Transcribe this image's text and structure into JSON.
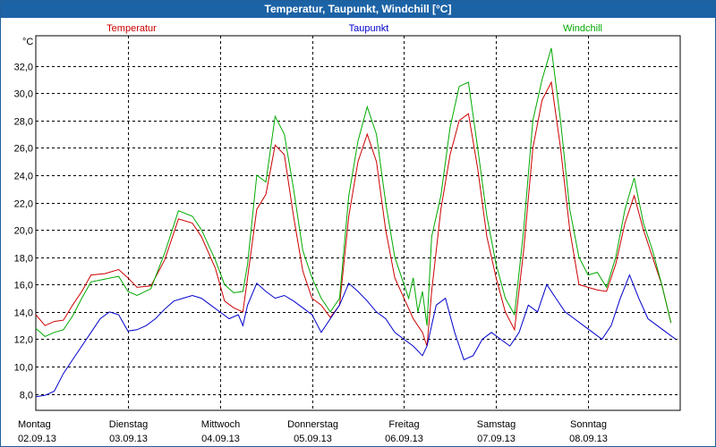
{
  "window": {
    "title": "Temperatur, Taupunkt, Windchill [°C]"
  },
  "chart_data": {
    "type": "line",
    "title": "Temperatur, Taupunkt, Windchill [°C]",
    "ylabel": "°C",
    "xlabel": "",
    "ylim": [
      6.8,
      34.2
    ],
    "xlim": [
      0,
      7
    ],
    "grid": true,
    "yticks": [
      8,
      10,
      12,
      14,
      16,
      18,
      20,
      22,
      24,
      26,
      28,
      30,
      32
    ],
    "ytick_labels": [
      "8,0",
      "10,0",
      "12,0",
      "14,0",
      "16,0",
      "18,0",
      "20,0",
      "22,0",
      "24,0",
      "26,0",
      "28,0",
      "30,0",
      "32,0"
    ],
    "xticks": [
      {
        "x": 0,
        "day": "Montag",
        "date": "02.09.13"
      },
      {
        "x": 1,
        "day": "Dienstag",
        "date": "03.09.13"
      },
      {
        "x": 2,
        "day": "Mittwoch",
        "date": "04.09.13"
      },
      {
        "x": 3,
        "day": "Donnerstag",
        "date": "05.09.13"
      },
      {
        "x": 4,
        "day": "Freitag",
        "date": "06.09.13"
      },
      {
        "x": 5,
        "day": "Samstag",
        "date": "07.09.13"
      },
      {
        "x": 6,
        "day": "Sonntag",
        "date": "08.09.13"
      }
    ],
    "series": [
      {
        "name": "Temperatur",
        "color": "#cc0000",
        "points": [
          [
            0,
            13.8
          ],
          [
            0.1,
            13.0
          ],
          [
            0.2,
            13.3
          ],
          [
            0.3,
            13.4
          ],
          [
            0.4,
            14.5
          ],
          [
            0.5,
            15.5
          ],
          [
            0.6,
            16.7
          ],
          [
            0.75,
            16.8
          ],
          [
            0.9,
            17.1
          ],
          [
            1.0,
            16.5
          ],
          [
            1.1,
            15.8
          ],
          [
            1.25,
            15.9
          ],
          [
            1.4,
            17.8
          ],
          [
            1.55,
            20.8
          ],
          [
            1.7,
            20.5
          ],
          [
            1.8,
            19.5
          ],
          [
            1.95,
            17.2
          ],
          [
            2.05,
            14.8
          ],
          [
            2.15,
            14.3
          ],
          [
            2.25,
            14.0
          ],
          [
            2.3,
            16.5
          ],
          [
            2.4,
            21.5
          ],
          [
            2.5,
            22.6
          ],
          [
            2.6,
            26.2
          ],
          [
            2.7,
            25.5
          ],
          [
            2.8,
            21.0
          ],
          [
            2.9,
            17.0
          ],
          [
            3.0,
            15.0
          ],
          [
            3.1,
            14.5
          ],
          [
            3.2,
            13.6
          ],
          [
            3.3,
            14.5
          ],
          [
            3.4,
            21.0
          ],
          [
            3.5,
            25.0
          ],
          [
            3.6,
            27.0
          ],
          [
            3.7,
            25.0
          ],
          [
            3.8,
            20.0
          ],
          [
            3.9,
            16.5
          ],
          [
            4.0,
            15.0
          ],
          [
            4.1,
            13.5
          ],
          [
            4.2,
            12.5
          ],
          [
            4.25,
            11.5
          ],
          [
            4.3,
            15.5
          ],
          [
            4.4,
            21.5
          ],
          [
            4.5,
            25.5
          ],
          [
            4.6,
            28.0
          ],
          [
            4.7,
            28.5
          ],
          [
            4.8,
            24.5
          ],
          [
            4.9,
            19.5
          ],
          [
            5.0,
            16.5
          ],
          [
            5.1,
            14.0
          ],
          [
            5.2,
            12.7
          ],
          [
            5.3,
            18.5
          ],
          [
            5.4,
            26.0
          ],
          [
            5.5,
            29.5
          ],
          [
            5.6,
            30.8
          ],
          [
            5.7,
            26.0
          ],
          [
            5.8,
            20.0
          ],
          [
            5.9,
            16.0
          ],
          [
            6.0,
            15.8
          ],
          [
            6.1,
            15.6
          ],
          [
            6.2,
            15.5
          ],
          [
            6.3,
            17.5
          ],
          [
            6.4,
            20.5
          ],
          [
            6.5,
            22.5
          ],
          [
            6.6,
            20.0
          ],
          [
            6.7,
            18.0
          ],
          [
            6.8,
            16.0
          ],
          [
            6.9,
            13.2
          ]
        ]
      },
      {
        "name": "Taupunkt",
        "color": "#0000cc",
        "points": [
          [
            0,
            7.8
          ],
          [
            0.1,
            7.9
          ],
          [
            0.2,
            8.2
          ],
          [
            0.3,
            9.5
          ],
          [
            0.4,
            10.5
          ],
          [
            0.5,
            11.5
          ],
          [
            0.6,
            12.5
          ],
          [
            0.7,
            13.5
          ],
          [
            0.8,
            14.0
          ],
          [
            0.9,
            13.8
          ],
          [
            1.0,
            12.6
          ],
          [
            1.1,
            12.7
          ],
          [
            1.2,
            13.0
          ],
          [
            1.3,
            13.5
          ],
          [
            1.4,
            14.2
          ],
          [
            1.5,
            14.8
          ],
          [
            1.6,
            15.0
          ],
          [
            1.7,
            15.2
          ],
          [
            1.8,
            15.0
          ],
          [
            1.9,
            14.5
          ],
          [
            2.0,
            14.0
          ],
          [
            2.1,
            13.5
          ],
          [
            2.2,
            13.8
          ],
          [
            2.25,
            13.0
          ],
          [
            2.3,
            14.5
          ],
          [
            2.4,
            16.1
          ],
          [
            2.5,
            15.5
          ],
          [
            2.6,
            15.0
          ],
          [
            2.7,
            15.2
          ],
          [
            2.8,
            14.8
          ],
          [
            2.9,
            14.3
          ],
          [
            3.0,
            13.8
          ],
          [
            3.1,
            12.5
          ],
          [
            3.2,
            13.5
          ],
          [
            3.3,
            14.5
          ],
          [
            3.4,
            16.1
          ],
          [
            3.5,
            15.5
          ],
          [
            3.6,
            14.8
          ],
          [
            3.7,
            14.0
          ],
          [
            3.8,
            13.5
          ],
          [
            3.9,
            12.5
          ],
          [
            4.0,
            12.0
          ],
          [
            4.1,
            11.5
          ],
          [
            4.2,
            10.8
          ],
          [
            4.25,
            11.5
          ],
          [
            4.35,
            14.5
          ],
          [
            4.45,
            15.0
          ],
          [
            4.55,
            12.5
          ],
          [
            4.65,
            10.5
          ],
          [
            4.75,
            10.8
          ],
          [
            4.85,
            12.0
          ],
          [
            4.95,
            12.5
          ],
          [
            5.05,
            12.0
          ],
          [
            5.15,
            11.5
          ],
          [
            5.25,
            12.5
          ],
          [
            5.35,
            14.5
          ],
          [
            5.45,
            14.0
          ],
          [
            5.55,
            16.0
          ],
          [
            5.65,
            15.0
          ],
          [
            5.75,
            14.0
          ],
          [
            5.85,
            13.5
          ],
          [
            5.95,
            13.0
          ],
          [
            6.05,
            12.5
          ],
          [
            6.15,
            12.0
          ],
          [
            6.25,
            13.0
          ],
          [
            6.35,
            15.0
          ],
          [
            6.45,
            16.7
          ],
          [
            6.55,
            15.0
          ],
          [
            6.65,
            13.5
          ],
          [
            6.75,
            13.0
          ],
          [
            6.85,
            12.5
          ],
          [
            6.95,
            12.0
          ]
        ]
      },
      {
        "name": "Windchill",
        "color": "#00aa00",
        "points": [
          [
            0,
            12.8
          ],
          [
            0.1,
            12.2
          ],
          [
            0.2,
            12.5
          ],
          [
            0.3,
            12.7
          ],
          [
            0.4,
            13.7
          ],
          [
            0.5,
            15.0
          ],
          [
            0.6,
            16.2
          ],
          [
            0.75,
            16.4
          ],
          [
            0.9,
            16.6
          ],
          [
            1.0,
            15.5
          ],
          [
            1.1,
            15.2
          ],
          [
            1.25,
            15.7
          ],
          [
            1.4,
            18.3
          ],
          [
            1.55,
            21.4
          ],
          [
            1.7,
            21.0
          ],
          [
            1.8,
            20.0
          ],
          [
            1.95,
            17.8
          ],
          [
            2.05,
            16.0
          ],
          [
            2.15,
            15.4
          ],
          [
            2.25,
            15.5
          ],
          [
            2.3,
            17.5
          ],
          [
            2.4,
            24.0
          ],
          [
            2.5,
            23.5
          ],
          [
            2.6,
            28.3
          ],
          [
            2.7,
            27.0
          ],
          [
            2.8,
            23.0
          ],
          [
            2.9,
            18.5
          ],
          [
            3.0,
            16.5
          ],
          [
            3.1,
            15.0
          ],
          [
            3.2,
            14.0
          ],
          [
            3.3,
            15.0
          ],
          [
            3.4,
            22.5
          ],
          [
            3.5,
            26.5
          ],
          [
            3.6,
            29.0
          ],
          [
            3.7,
            27.0
          ],
          [
            3.8,
            22.0
          ],
          [
            3.9,
            18.0
          ],
          [
            4.0,
            16.0
          ],
          [
            4.05,
            15.0
          ],
          [
            4.1,
            16.5
          ],
          [
            4.15,
            14.0
          ],
          [
            4.2,
            15.5
          ],
          [
            4.25,
            13.0
          ],
          [
            4.3,
            19.5
          ],
          [
            4.4,
            22.5
          ],
          [
            4.5,
            27.5
          ],
          [
            4.6,
            30.5
          ],
          [
            4.7,
            30.8
          ],
          [
            4.8,
            26.0
          ],
          [
            4.9,
            21.0
          ],
          [
            5.0,
            17.5
          ],
          [
            5.1,
            15.0
          ],
          [
            5.2,
            13.8
          ],
          [
            5.3,
            20.0
          ],
          [
            5.4,
            28.0
          ],
          [
            5.5,
            31.0
          ],
          [
            5.6,
            33.3
          ],
          [
            5.7,
            28.0
          ],
          [
            5.8,
            21.5
          ],
          [
            5.9,
            18.0
          ],
          [
            6.0,
            16.7
          ],
          [
            6.1,
            16.9
          ],
          [
            6.2,
            15.8
          ],
          [
            6.3,
            18.0
          ],
          [
            6.4,
            21.5
          ],
          [
            6.5,
            23.8
          ],
          [
            6.6,
            20.5
          ],
          [
            6.7,
            18.5
          ],
          [
            6.8,
            16.0
          ],
          [
            6.9,
            13.2
          ]
        ]
      }
    ]
  }
}
